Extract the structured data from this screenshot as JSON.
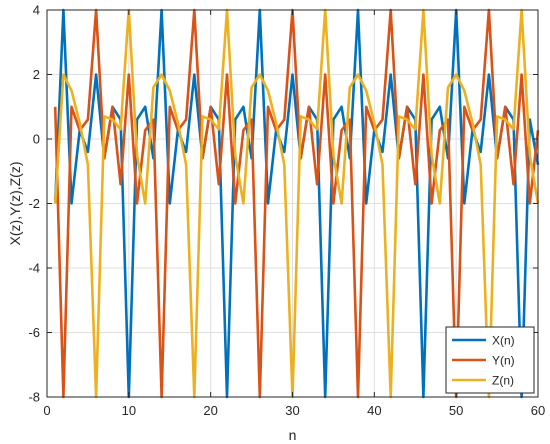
{
  "chart_data": {
    "type": "line",
    "xlabel": "n",
    "ylabel": "X(z),Y(z),Z(z)",
    "xlim": [
      0,
      60
    ],
    "ylim": [
      -8,
      4
    ],
    "xticks": [
      0,
      10,
      20,
      30,
      40,
      50,
      60
    ],
    "yticks": [
      -8,
      -6,
      -4,
      -2,
      0,
      2,
      4
    ],
    "xtick_labels": [
      "0",
      "10",
      "20",
      "30",
      "40",
      "50",
      "60"
    ],
    "ytick_labels": [
      "-8",
      "-6",
      "-4",
      "-2",
      "0",
      "2",
      "4"
    ],
    "grid": true,
    "legend_position": "bottom-right",
    "x": [
      1,
      2,
      3,
      4,
      5,
      6,
      7,
      8,
      9,
      10,
      11,
      12,
      13,
      14,
      15,
      16,
      17,
      18,
      19,
      20,
      21,
      22,
      23,
      24,
      25,
      26,
      27,
      28,
      29,
      30,
      31,
      32,
      33,
      34,
      35,
      36,
      37,
      38,
      39,
      40,
      41,
      42,
      43,
      44,
      45,
      46,
      47,
      48,
      49,
      50,
      51,
      52,
      53,
      54,
      55,
      56,
      57,
      58,
      59,
      60
    ],
    "series": [
      {
        "name": "X(n)",
        "color": "#0072BD",
        "values": [
          -2,
          4,
          -2,
          0.27,
          -0.4,
          2,
          -0.6,
          1,
          0.6,
          -8,
          0.6,
          1,
          -0.6,
          4,
          -2,
          0.27,
          -0.4,
          2,
          -0.6,
          1,
          0.6,
          -8,
          0.6,
          1,
          -0.6,
          4,
          -2,
          0.27,
          -0.4,
          2,
          -0.6,
          1,
          0.6,
          -8,
          0.6,
          1,
          -0.6,
          4,
          -2,
          0.27,
          -0.4,
          2,
          -0.6,
          1,
          0.6,
          -8,
          0.6,
          1,
          -0.6,
          4,
          -2,
          0.27,
          -0.4,
          2,
          -0.6,
          1,
          0.6,
          -8,
          0.6,
          -0.8
        ]
      },
      {
        "name": "Y(n)",
        "color": "#D95319",
        "values": [
          1,
          -8,
          1,
          0.27,
          0.6,
          4,
          -0.6,
          1,
          -1.4,
          2,
          -2,
          0.27,
          0.6,
          -8,
          1,
          0.27,
          0.6,
          4,
          -0.6,
          1,
          -1.4,
          2,
          -2,
          0.27,
          0.6,
          -8,
          1,
          0.27,
          0.6,
          4,
          -0.6,
          1,
          -1.4,
          2,
          -2,
          0.27,
          0.6,
          -8,
          1,
          0.27,
          0.6,
          4,
          -0.6,
          1,
          -1.4,
          2,
          -2,
          0.27,
          0.6,
          -8,
          1,
          0.27,
          0.6,
          4,
          -0.6,
          1,
          -1.4,
          2,
          -2,
          0.27
        ]
      },
      {
        "name": "Z(n)",
        "color": "#EDB120",
        "values": [
          -2,
          2,
          1.5,
          0.5,
          -0.8,
          -8,
          0.7,
          0.6,
          0.3,
          4,
          -0.5,
          -2,
          1.6,
          2,
          1.5,
          0.5,
          -0.8,
          -8,
          0.7,
          0.6,
          0.3,
          4,
          -0.5,
          -2,
          1.6,
          2,
          1.5,
          0.5,
          -0.8,
          -8,
          0.7,
          0.6,
          0.3,
          4,
          -0.5,
          -2,
          1.6,
          2,
          1.5,
          0.5,
          -0.8,
          -8,
          0.7,
          0.6,
          0.3,
          4,
          -0.5,
          -2,
          1.6,
          2,
          1.5,
          0.5,
          -0.8,
          -8,
          0.7,
          0.6,
          0.3,
          4,
          -0.5,
          -2
        ]
      }
    ]
  }
}
